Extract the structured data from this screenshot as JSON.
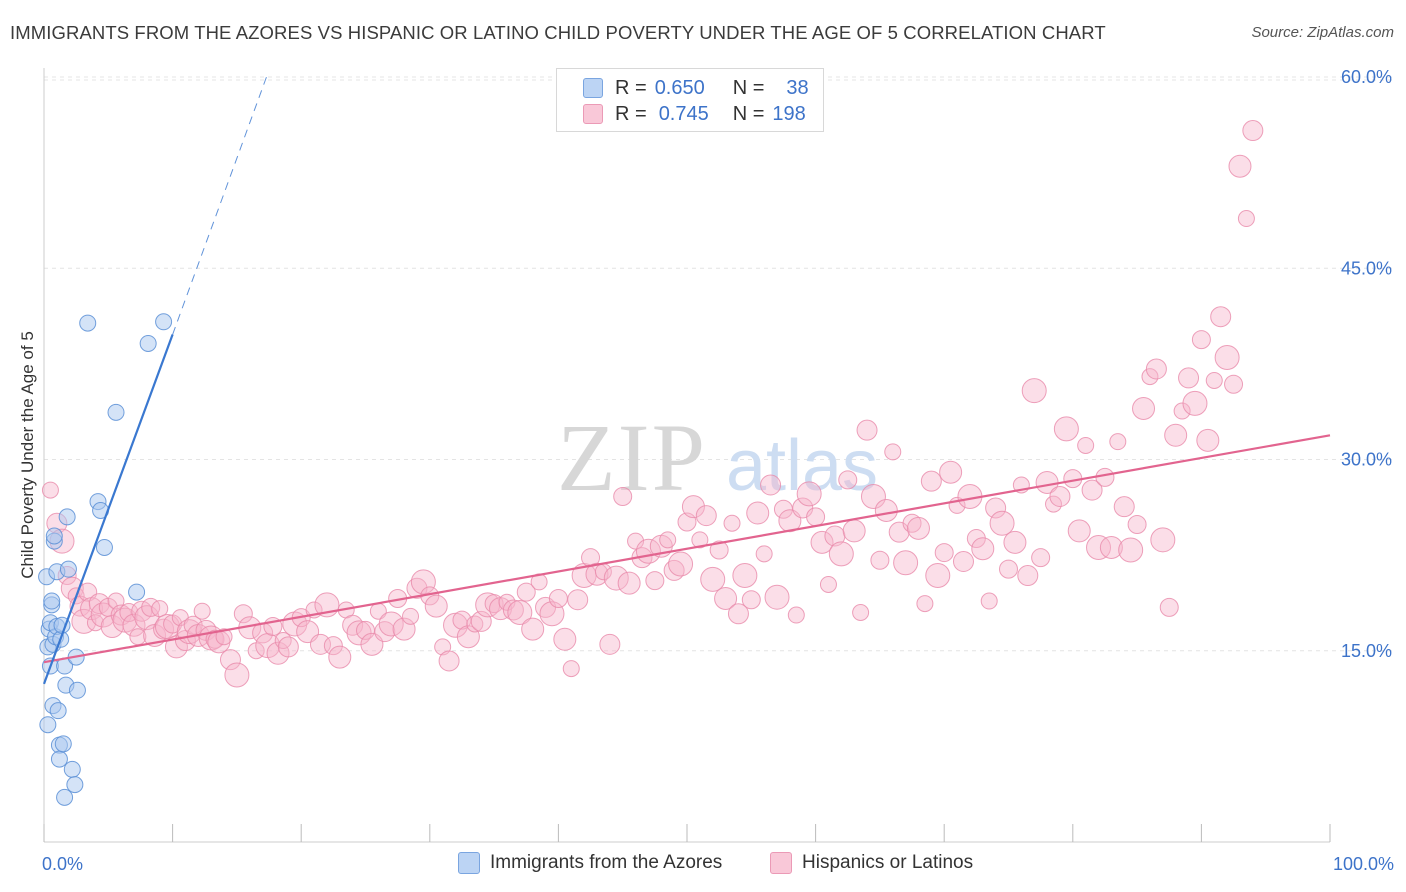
{
  "title": "IMMIGRANTS FROM THE AZORES VS HISPANIC OR LATINO CHILD POVERTY UNDER THE AGE OF 5 CORRELATION CHART",
  "source": "Source: ZipAtlas.com",
  "watermark": {
    "zip": "ZIP",
    "atlas": "atlas"
  },
  "legend": {
    "series1": {
      "r_label": "R =",
      "r_value": "0.650",
      "n_label": "N =",
      "n_value": "38"
    },
    "series2": {
      "r_label": "R =",
      "r_value": "0.745",
      "n_label": "N =",
      "n_value": "198"
    }
  },
  "colors": {
    "blue_fill": "#a9c8f0",
    "blue_stroke": "#5a8fd6",
    "blue_line": "#3a78d0",
    "pink_fill": "#f6b6cb",
    "pink_stroke": "#e88aaa",
    "pink_line": "#e2648f",
    "accent_text": "#3d73c9",
    "grid": "#e4e4e4"
  },
  "chart_data": {
    "type": "scatter",
    "title": "IMMIGRANTS FROM THE AZORES VS HISPANIC OR LATINO CHILD POVERTY UNDER THE AGE OF 5 CORRELATION CHART",
    "xlabel": "",
    "ylabel": "Child Poverty Under the Age of 5",
    "xlim": [
      0,
      100
    ],
    "ylim": [
      0,
      62
    ],
    "x_tick_labels": [
      "0.0%",
      "100.0%"
    ],
    "y_ticks": [
      15,
      30,
      45,
      60
    ],
    "y_tick_labels": [
      "15.0%",
      "30.0%",
      "45.0%",
      "60.0%"
    ],
    "grid": true,
    "series": [
      {
        "name": "Immigrants from the Azores",
        "r": 0.65,
        "n": 38,
        "trend": {
          "x": [
            0,
            10
          ],
          "y": [
            12.4,
            39.8
          ],
          "dash_to": [
            17.3,
            60.0
          ]
        },
        "points": [
          [
            0.2,
            20.8
          ],
          [
            0.3,
            15.3
          ],
          [
            0.4,
            16.7
          ],
          [
            0.5,
            17.2
          ],
          [
            0.5,
            13.8
          ],
          [
            0.6,
            18.6
          ],
          [
            0.6,
            18.9
          ],
          [
            0.7,
            15.5
          ],
          [
            0.7,
            10.7
          ],
          [
            0.8,
            23.6
          ],
          [
            0.8,
            24.0
          ],
          [
            0.9,
            16.1
          ],
          [
            1.0,
            21.2
          ],
          [
            1.0,
            16.9
          ],
          [
            1.1,
            10.3
          ],
          [
            1.2,
            7.6
          ],
          [
            1.2,
            6.5
          ],
          [
            1.3,
            15.9
          ],
          [
            1.4,
            17.0
          ],
          [
            1.5,
            7.7
          ],
          [
            1.6,
            3.5
          ],
          [
            1.6,
            13.8
          ],
          [
            1.7,
            12.3
          ],
          [
            1.8,
            25.5
          ],
          [
            1.9,
            21.4
          ],
          [
            2.2,
            5.7
          ],
          [
            2.4,
            4.5
          ],
          [
            2.5,
            14.5
          ],
          [
            2.6,
            11.9
          ],
          [
            3.4,
            40.7
          ],
          [
            4.2,
            26.7
          ],
          [
            4.4,
            26.0
          ],
          [
            4.7,
            23.1
          ],
          [
            5.6,
            33.7
          ],
          [
            7.2,
            19.6
          ],
          [
            8.1,
            39.1
          ],
          [
            9.3,
            40.8
          ],
          [
            0.3,
            9.2
          ]
        ]
      },
      {
        "name": "Hispanics or Latinos",
        "r": 0.745,
        "n": 198,
        "trend": {
          "x": [
            0,
            100
          ],
          "y": [
            14.1,
            31.9
          ]
        },
        "points": [
          [
            0.5,
            27.6
          ],
          [
            1.0,
            25.0
          ],
          [
            1.4,
            23.6
          ],
          [
            1.8,
            20.9
          ],
          [
            2.2,
            19.9
          ],
          [
            2.5,
            19.3
          ],
          [
            2.8,
            18.5
          ],
          [
            3.1,
            17.3
          ],
          [
            3.4,
            19.6
          ],
          [
            3.7,
            18.3
          ],
          [
            4.0,
            17.2
          ],
          [
            4.3,
            18.7
          ],
          [
            4.6,
            17.8
          ],
          [
            5.0,
            18.4
          ],
          [
            5.3,
            16.9
          ],
          [
            5.6,
            18.9
          ],
          [
            6.0,
            17.8
          ],
          [
            6.3,
            17.4
          ],
          [
            6.6,
            18.0
          ],
          [
            7.0,
            17.0
          ],
          [
            7.3,
            16.1
          ],
          [
            7.6,
            18.1
          ],
          [
            8.0,
            17.6
          ],
          [
            8.3,
            18.4
          ],
          [
            8.6,
            16.2
          ],
          [
            9.0,
            18.3
          ],
          [
            9.3,
            16.7
          ],
          [
            9.6,
            16.9
          ],
          [
            10.0,
            17.1
          ],
          [
            10.3,
            15.3
          ],
          [
            10.6,
            17.6
          ],
          [
            11.0,
            15.8
          ],
          [
            11.3,
            16.5
          ],
          [
            11.6,
            17.0
          ],
          [
            12.0,
            16.2
          ],
          [
            12.3,
            18.1
          ],
          [
            12.6,
            16.6
          ],
          [
            13.0,
            16.0
          ],
          [
            13.3,
            15.9
          ],
          [
            13.6,
            15.7
          ],
          [
            14.0,
            16.1
          ],
          [
            14.5,
            14.3
          ],
          [
            15.0,
            13.1
          ],
          [
            15.5,
            17.9
          ],
          [
            16.0,
            16.8
          ],
          [
            16.5,
            15.0
          ],
          [
            17.0,
            16.4
          ],
          [
            17.4,
            15.4
          ],
          [
            17.8,
            16.9
          ],
          [
            18.2,
            14.8
          ],
          [
            18.6,
            15.8
          ],
          [
            19.0,
            15.3
          ],
          [
            19.5,
            17.1
          ],
          [
            20.0,
            17.6
          ],
          [
            20.5,
            16.5
          ],
          [
            21.0,
            18.2
          ],
          [
            21.5,
            15.5
          ],
          [
            22.0,
            18.6
          ],
          [
            22.5,
            15.4
          ],
          [
            23.0,
            14.5
          ],
          [
            23.5,
            18.2
          ],
          [
            24.0,
            17.0
          ],
          [
            24.5,
            16.4
          ],
          [
            25.0,
            16.6
          ],
          [
            25.5,
            15.5
          ],
          [
            26.0,
            18.1
          ],
          [
            26.5,
            16.5
          ],
          [
            27.0,
            17.1
          ],
          [
            27.5,
            19.1
          ],
          [
            28.0,
            16.7
          ],
          [
            28.5,
            17.7
          ],
          [
            29.0,
            19.9
          ],
          [
            29.5,
            20.4
          ],
          [
            30.0,
            19.3
          ],
          [
            30.5,
            18.5
          ],
          [
            31.0,
            15.3
          ],
          [
            31.5,
            14.2
          ],
          [
            32.0,
            17.0
          ],
          [
            32.5,
            17.4
          ],
          [
            33.0,
            16.1
          ],
          [
            33.5,
            17.1
          ],
          [
            34.0,
            17.3
          ],
          [
            34.5,
            18.6
          ],
          [
            35.0,
            18.7
          ],
          [
            35.5,
            18.3
          ],
          [
            36.0,
            18.8
          ],
          [
            36.5,
            18.2
          ],
          [
            37.0,
            18.0
          ],
          [
            37.5,
            19.6
          ],
          [
            38.0,
            16.7
          ],
          [
            38.5,
            20.4
          ],
          [
            39.0,
            18.4
          ],
          [
            39.5,
            17.9
          ],
          [
            40.0,
            19.1
          ],
          [
            40.5,
            15.9
          ],
          [
            41.0,
            13.6
          ],
          [
            41.5,
            19.0
          ],
          [
            42.0,
            20.9
          ],
          [
            42.5,
            22.3
          ],
          [
            43.0,
            21.0
          ],
          [
            43.5,
            21.2
          ],
          [
            44.0,
            15.5
          ],
          [
            44.5,
            20.7
          ],
          [
            45.0,
            27.1
          ],
          [
            45.5,
            20.3
          ],
          [
            46.0,
            23.6
          ],
          [
            46.5,
            22.3
          ],
          [
            47.0,
            22.8
          ],
          [
            47.5,
            20.5
          ],
          [
            48.0,
            23.2
          ],
          [
            48.5,
            23.7
          ],
          [
            49.0,
            21.3
          ],
          [
            49.5,
            21.8
          ],
          [
            50.0,
            25.1
          ],
          [
            50.5,
            26.3
          ],
          [
            51.0,
            23.7
          ],
          [
            51.5,
            25.6
          ],
          [
            52.0,
            20.6
          ],
          [
            52.5,
            22.9
          ],
          [
            53.0,
            19.1
          ],
          [
            53.5,
            25.0
          ],
          [
            54.0,
            17.9
          ],
          [
            54.5,
            20.9
          ],
          [
            55.0,
            19.0
          ],
          [
            55.5,
            25.8
          ],
          [
            56.0,
            22.6
          ],
          [
            56.5,
            28.0
          ],
          [
            57.0,
            19.2
          ],
          [
            57.5,
            26.1
          ],
          [
            58.0,
            25.2
          ],
          [
            58.5,
            17.8
          ],
          [
            59.0,
            26.2
          ],
          [
            59.5,
            27.3
          ],
          [
            60.0,
            25.5
          ],
          [
            60.5,
            23.5
          ],
          [
            61.0,
            20.2
          ],
          [
            61.5,
            24.0
          ],
          [
            62.0,
            22.6
          ],
          [
            62.5,
            28.4
          ],
          [
            63.0,
            24.4
          ],
          [
            63.5,
            18.0
          ],
          [
            64.0,
            32.3
          ],
          [
            64.5,
            27.1
          ],
          [
            65.0,
            22.1
          ],
          [
            65.5,
            26.0
          ],
          [
            66.0,
            30.6
          ],
          [
            66.5,
            24.3
          ],
          [
            67.0,
            21.9
          ],
          [
            67.5,
            25.0
          ],
          [
            68.0,
            24.6
          ],
          [
            68.5,
            18.7
          ],
          [
            69.0,
            28.3
          ],
          [
            69.5,
            20.9
          ],
          [
            70.0,
            22.7
          ],
          [
            70.5,
            29.0
          ],
          [
            71.0,
            26.4
          ],
          [
            71.5,
            22.0
          ],
          [
            72.0,
            27.1
          ],
          [
            72.5,
            23.8
          ],
          [
            73.0,
            23.0
          ],
          [
            73.5,
            18.9
          ],
          [
            74.0,
            26.2
          ],
          [
            74.5,
            25.0
          ],
          [
            75.0,
            21.4
          ],
          [
            75.5,
            23.5
          ],
          [
            76.0,
            28.0
          ],
          [
            76.5,
            20.9
          ],
          [
            77.0,
            35.4
          ],
          [
            77.5,
            22.3
          ],
          [
            78.0,
            28.2
          ],
          [
            78.5,
            26.5
          ],
          [
            79.0,
            27.1
          ],
          [
            79.5,
            32.4
          ],
          [
            80.0,
            28.5
          ],
          [
            80.5,
            24.4
          ],
          [
            81.0,
            31.1
          ],
          [
            81.5,
            27.6
          ],
          [
            82.0,
            23.1
          ],
          [
            82.5,
            28.6
          ],
          [
            83.0,
            23.1
          ],
          [
            83.5,
            31.4
          ],
          [
            84.0,
            26.3
          ],
          [
            84.5,
            22.9
          ],
          [
            85.0,
            24.9
          ],
          [
            85.5,
            34.0
          ],
          [
            86.0,
            36.5
          ],
          [
            86.5,
            37.1
          ],
          [
            87.0,
            23.7
          ],
          [
            87.5,
            18.4
          ],
          [
            88.0,
            31.9
          ],
          [
            88.5,
            33.8
          ],
          [
            89.0,
            36.4
          ],
          [
            89.5,
            34.4
          ],
          [
            90.0,
            39.4
          ],
          [
            90.5,
            31.5
          ],
          [
            91.0,
            36.2
          ],
          [
            91.5,
            41.2
          ],
          [
            92.0,
            38.0
          ],
          [
            92.5,
            35.9
          ],
          [
            93.0,
            53.0
          ],
          [
            93.5,
            48.9
          ],
          [
            94.0,
            55.8
          ]
        ]
      }
    ]
  },
  "bottom_legend": {
    "series1": "Immigrants from the Azores",
    "series2": "Hispanics or Latinos"
  }
}
